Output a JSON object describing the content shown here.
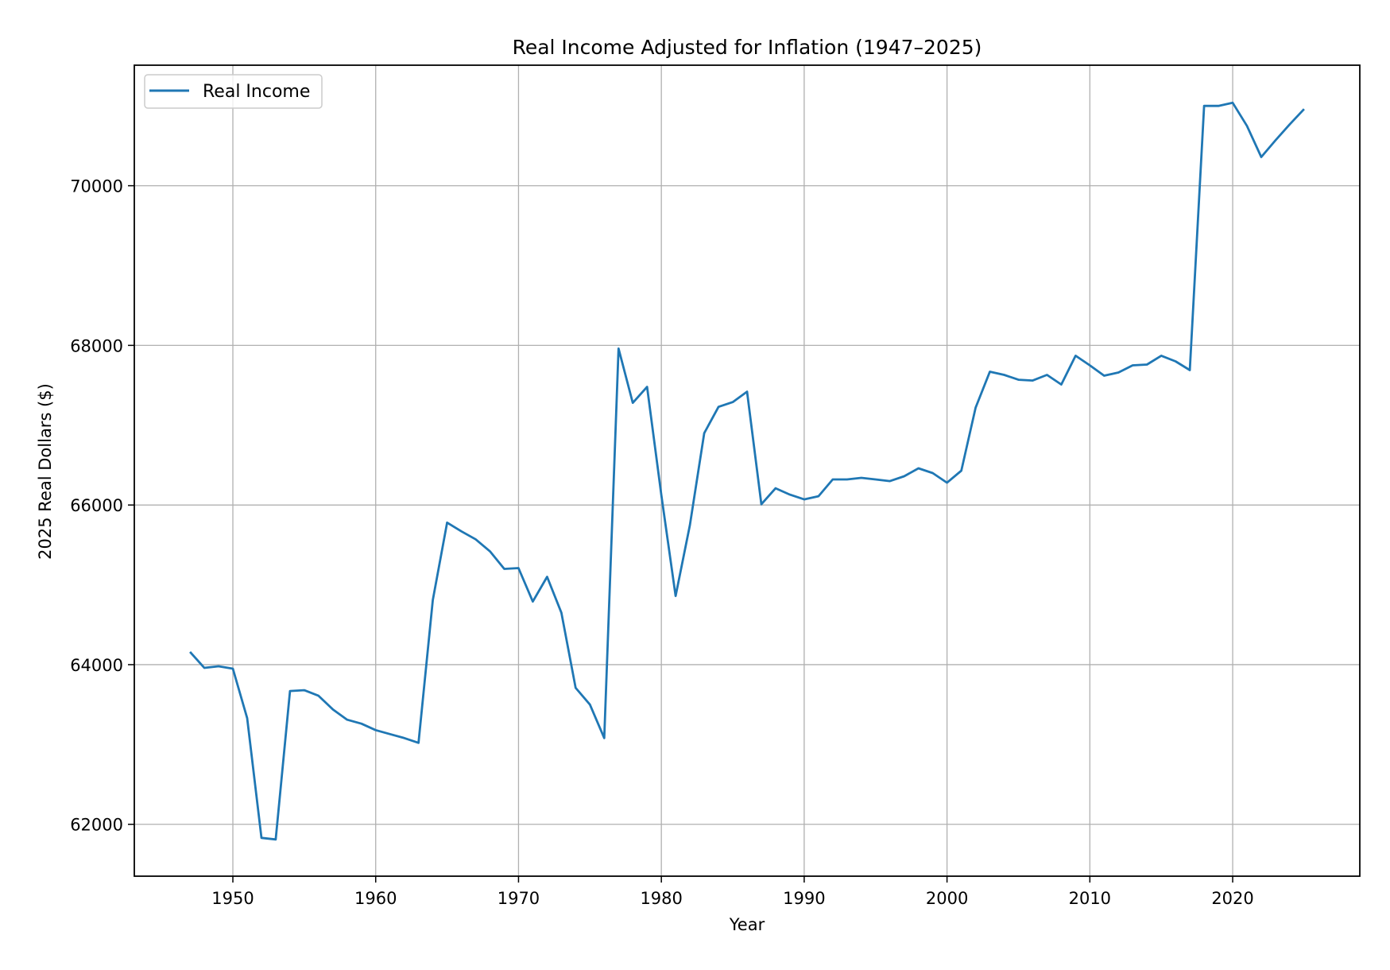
{
  "chart_data": {
    "type": "line",
    "title": "Real Income Adjusted for Inflation (1947–2025)",
    "xlabel": "Year",
    "ylabel": "2025 Real Dollars ($)",
    "xlim": [
      1943.1,
      2028.9
    ],
    "ylim": [
      61350,
      71510
    ],
    "xticks": [
      1950,
      1960,
      1970,
      1980,
      1990,
      2000,
      2010,
      2020
    ],
    "yticks": [
      62000,
      64000,
      66000,
      68000,
      70000
    ],
    "grid": true,
    "legend_position": "top-left",
    "series": [
      {
        "name": "Real Income",
        "color": "#1f77b4",
        "x": [
          1947,
          1948,
          1949,
          1950,
          1951,
          1952,
          1953,
          1954,
          1955,
          1956,
          1957,
          1958,
          1959,
          1960,
          1961,
          1962,
          1963,
          1964,
          1965,
          1966,
          1967,
          1968,
          1969,
          1970,
          1971,
          1972,
          1973,
          1974,
          1975,
          1976,
          1977,
          1978,
          1979,
          1980,
          1981,
          1982,
          1983,
          1984,
          1985,
          1986,
          1987,
          1988,
          1989,
          1990,
          1991,
          1992,
          1993,
          1994,
          1995,
          1996,
          1997,
          1998,
          1999,
          2000,
          2001,
          2002,
          2003,
          2004,
          2005,
          2006,
          2007,
          2008,
          2009,
          2010,
          2011,
          2012,
          2013,
          2014,
          2015,
          2016,
          2017,
          2018,
          2019,
          2020,
          2021,
          2022,
          2023,
          2024,
          2025
        ],
        "y": [
          64160,
          63960,
          63980,
          63950,
          63330,
          61830,
          61810,
          63670,
          63680,
          63610,
          63440,
          63310,
          63260,
          63180,
          63130,
          63080,
          63020,
          64810,
          65780,
          65670,
          65570,
          65420,
          65200,
          65210,
          64790,
          65100,
          64650,
          63710,
          63500,
          63080,
          67960,
          67280,
          67480,
          66120,
          64860,
          65750,
          66900,
          67230,
          67290,
          67420,
          66010,
          66210,
          66130,
          66070,
          66110,
          66320,
          66320,
          66340,
          66320,
          66300,
          66360,
          66460,
          66400,
          66280,
          66430,
          67220,
          67670,
          67630,
          67570,
          67560,
          67630,
          67510,
          67870,
          67750,
          67620,
          67660,
          67750,
          67760,
          67870,
          67800,
          67690,
          71000,
          71000,
          71040,
          70750,
          70360,
          70570,
          70770,
          70960
        ]
      }
    ]
  }
}
